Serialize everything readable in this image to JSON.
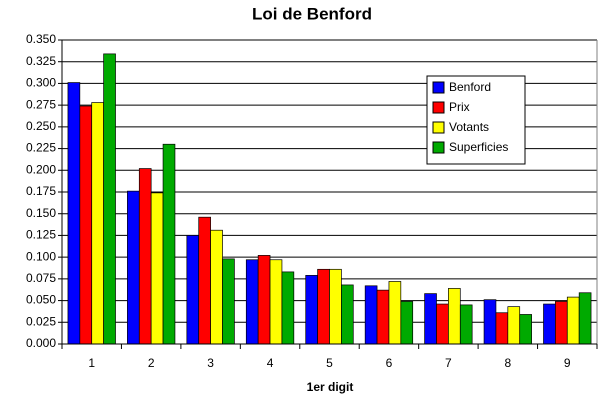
{
  "chart_data": {
    "type": "bar",
    "title": "Loi de Benford",
    "x_label": "1er digit",
    "categories": [
      "1",
      "2",
      "3",
      "4",
      "5",
      "6",
      "7",
      "8",
      "9"
    ],
    "series": [
      {
        "name": "Benford",
        "color": "#0000ff",
        "values": [
          0.301,
          0.176,
          0.125,
          0.097,
          0.079,
          0.067,
          0.058,
          0.051,
          0.046
        ]
      },
      {
        "name": "Prix",
        "color": "#ff0000",
        "values": [
          0.274,
          0.202,
          0.146,
          0.102,
          0.086,
          0.062,
          0.046,
          0.036,
          0.049
        ]
      },
      {
        "name": "Votants",
        "color": "#ffff00",
        "values": [
          0.278,
          0.174,
          0.131,
          0.097,
          0.086,
          0.072,
          0.064,
          0.043,
          0.054
        ]
      },
      {
        "name": "Superficies",
        "color": "#00aa00",
        "values": [
          0.334,
          0.23,
          0.098,
          0.083,
          0.068,
          0.049,
          0.045,
          0.034,
          0.059
        ]
      }
    ],
    "ylim": [
      0,
      0.35
    ],
    "yticks": [
      {
        "value": 0,
        "label": "0.000"
      },
      {
        "value": 0.025,
        "label": "0.025"
      },
      {
        "value": 0.05,
        "label": "0.050"
      },
      {
        "value": 0.075,
        "label": "0.075"
      },
      {
        "value": 0.1,
        "label": "0.100"
      },
      {
        "value": 0.125,
        "label": "0.125"
      },
      {
        "value": 0.15,
        "label": "0.150"
      },
      {
        "value": 0.175,
        "label": "0.175"
      },
      {
        "value": 0.2,
        "label": "0.200"
      },
      {
        "value": 0.225,
        "label": "0.225"
      },
      {
        "value": 0.25,
        "label": "0.250"
      },
      {
        "value": 0.275,
        "label": "0.275"
      },
      {
        "value": 0.3,
        "label": "0.300"
      },
      {
        "value": 0.325,
        "label": "0.325"
      },
      {
        "value": 0.35,
        "label": "0.350"
      }
    ],
    "grid": true,
    "legend": "upper right"
  }
}
